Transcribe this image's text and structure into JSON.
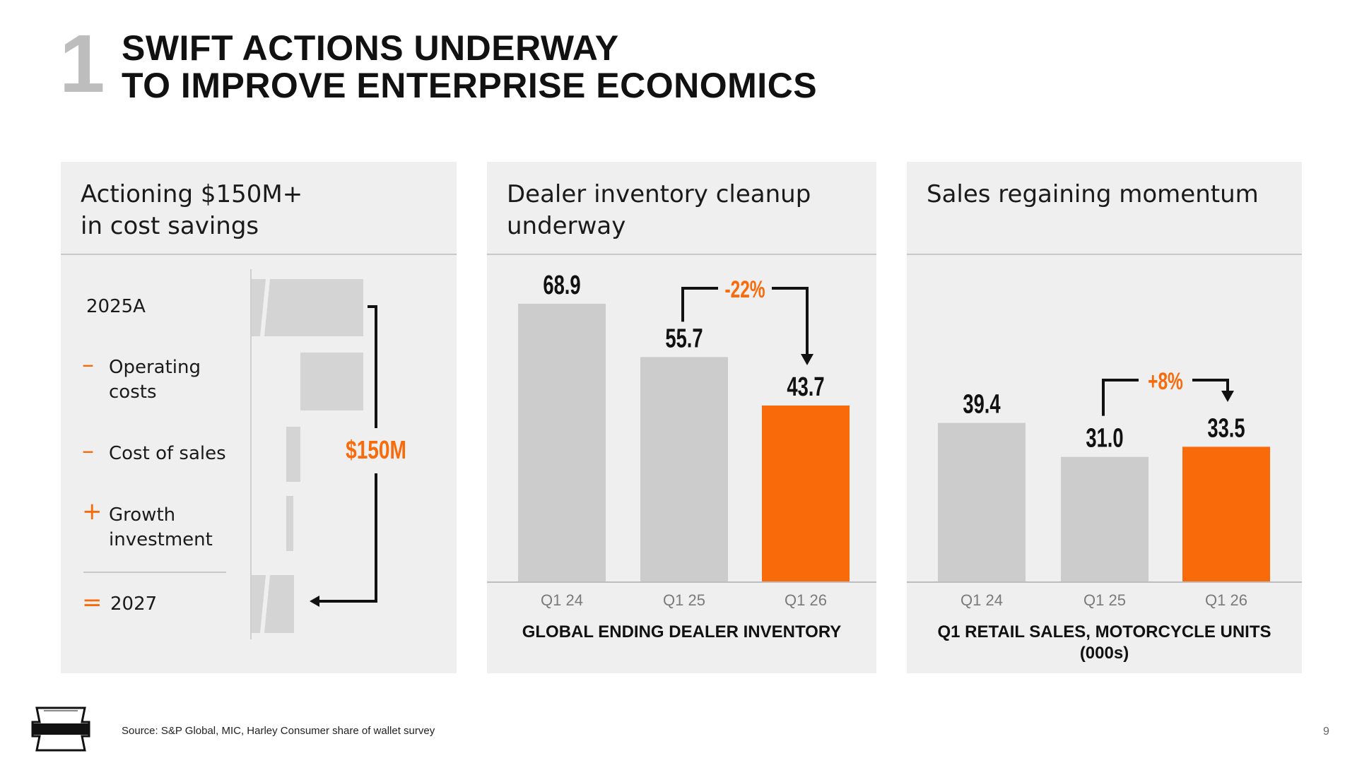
{
  "slide": {
    "number": "1",
    "title_line1": "SWIFT ACTIONS UNDERWAY",
    "title_line2": "TO IMPROVE ENTERPRISE ECONOMICS",
    "source": "Source: S&P Global, MIC, Harley Consumer share of wallet survey",
    "page": "9",
    "logo_text": [
      "MOTOR",
      "HARLEY-DAVIDSON",
      "CYCLES"
    ]
  },
  "colors": {
    "accent": "#f86a0a",
    "bar_gray": "#cccccc",
    "panel_bg": "#efefef",
    "text": "#111111"
  },
  "cost_panel": {
    "heading_line1": "Actioning $150M+",
    "heading_line2": "in cost savings",
    "rows": [
      {
        "sign": "",
        "label_line1": "2025A",
        "label_line2": ""
      },
      {
        "sign": "–",
        "label_line1": "Operating",
        "label_line2": "costs"
      },
      {
        "sign": "–",
        "label_line1": "Cost of sales",
        "label_line2": ""
      },
      {
        "sign": "+",
        "label_line1": "Growth",
        "label_line2": "investment"
      },
      {
        "sign": "=",
        "label_line1": "2027",
        "label_line2": ""
      }
    ],
    "savings_label": "$150M"
  },
  "chart_data": [
    {
      "type": "bar",
      "title": "Dealer inventory cleanup underway",
      "caption": "GLOBAL ENDING DEALER INVENTORY",
      "categories": [
        "Q1 24",
        "Q1 25",
        "Q1 26"
      ],
      "values": [
        68.9,
        55.7,
        43.7
      ],
      "value_labels": [
        "68.9",
        "55.7",
        "43.7"
      ],
      "highlight_index": 2,
      "change_label": "-22%",
      "ylim": [
        0,
        80
      ]
    },
    {
      "type": "bar",
      "title": "Sales regaining momentum",
      "caption_line1": "Q1 RETAIL SALES, MOTORCYCLE UNITS",
      "caption_line2": "(000s)",
      "categories": [
        "Q1 24",
        "Q1 25",
        "Q1 26"
      ],
      "values": [
        39.4,
        31.0,
        33.5
      ],
      "value_labels": [
        "39.4",
        "31.0",
        "33.5"
      ],
      "highlight_index": 2,
      "change_label": "+8%",
      "ylim": [
        0,
        80
      ]
    }
  ]
}
